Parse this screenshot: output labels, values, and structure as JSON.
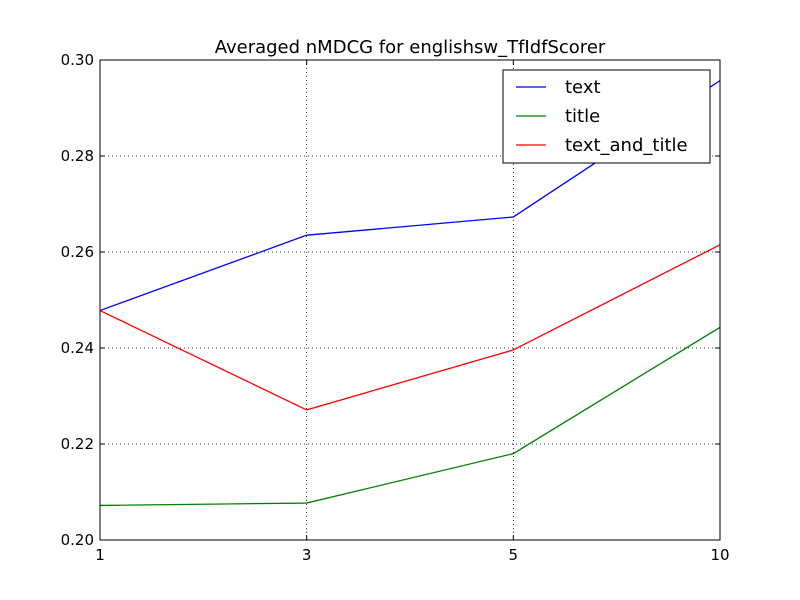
{
  "chart_data": {
    "type": "line",
    "title": "Averaged nMDCG for englishsw_TfIdfScorer",
    "xlabel": "",
    "ylabel": "",
    "x": [
      "1",
      "3",
      "5",
      "10"
    ],
    "ylim": [
      0.2,
      0.3
    ],
    "yticks": [
      "0.20",
      "0.22",
      "0.24",
      "0.26",
      "0.28",
      "0.30"
    ],
    "grid": true,
    "legend_position": "top-right",
    "series": [
      {
        "name": "text",
        "color": "#0000ff",
        "values": [
          0.2478,
          0.2635,
          0.2673,
          0.2957
        ]
      },
      {
        "name": "title",
        "color": "#008000",
        "values": [
          0.2072,
          0.2077,
          0.218,
          0.2443
        ]
      },
      {
        "name": "text_and_title",
        "color": "#ff0000",
        "values": [
          0.2478,
          0.2271,
          0.2396,
          0.2615
        ]
      }
    ]
  }
}
